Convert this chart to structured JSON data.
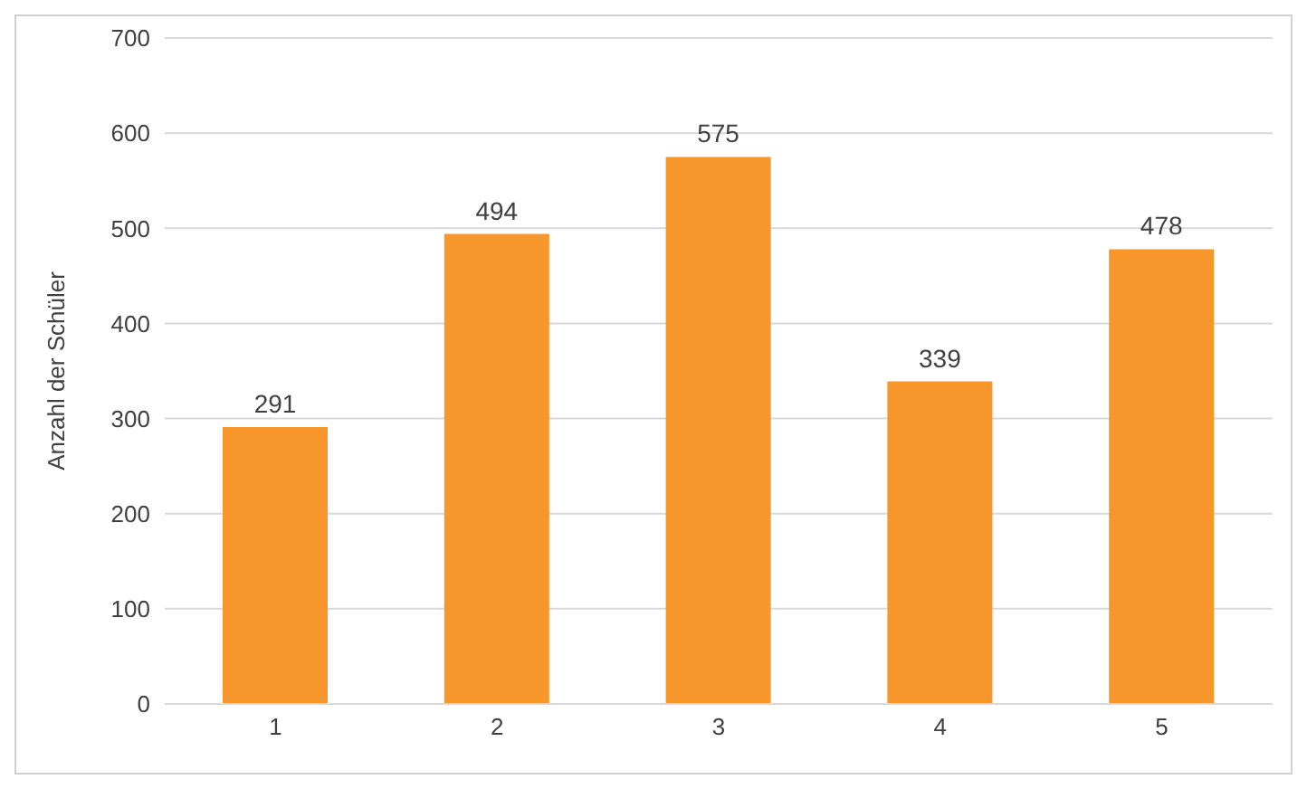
{
  "chart_data": {
    "type": "bar",
    "ylabel": "Anzahl der Schüler",
    "categories": [
      "1",
      "2",
      "3",
      "4",
      "5"
    ],
    "values": [
      291,
      494,
      575,
      339,
      478
    ],
    "color": "#f7962a",
    "ylim": [
      0,
      700
    ],
    "yticks": [
      0,
      100,
      200,
      300,
      400,
      500,
      600,
      700
    ],
    "grid": "y",
    "data_labels": true
  }
}
